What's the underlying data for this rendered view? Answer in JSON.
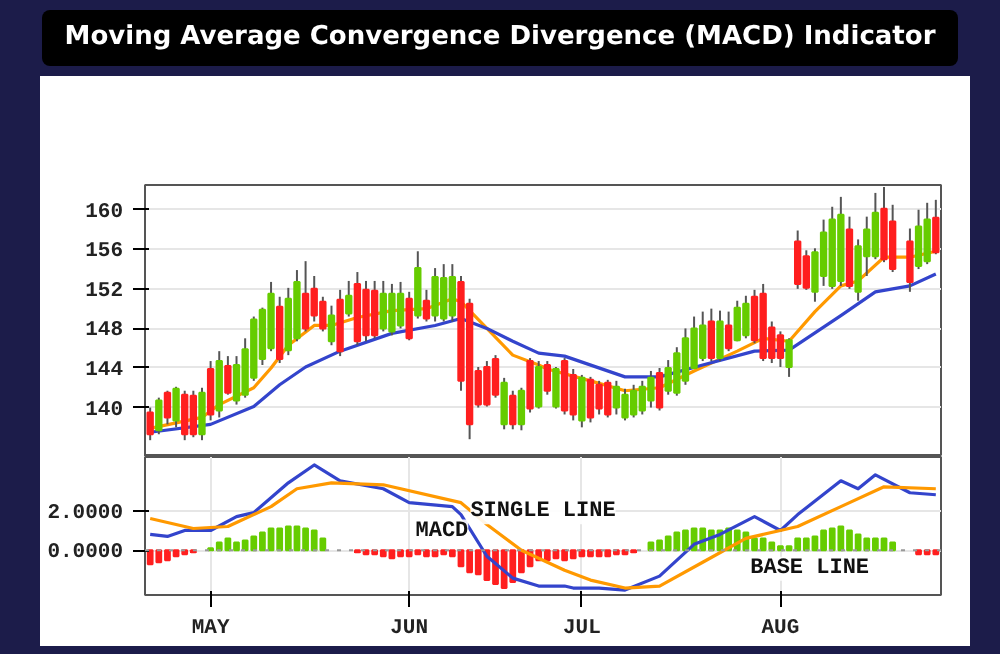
{
  "chart_data": [
    {
      "type": "candlestick",
      "title": "Moving Average Convergence Divergence (MACD) Indicator",
      "categories": [
        null,
        null,
        null,
        null,
        null,
        null,
        null,
        null,
        null,
        null,
        null,
        null,
        null,
        null,
        null,
        null,
        null,
        null,
        null,
        null,
        null,
        null,
        null,
        null,
        null,
        null,
        null,
        null,
        null,
        null,
        null,
        null,
        null,
        null,
        null,
        null,
        null,
        null,
        null,
        null,
        null,
        null,
        null,
        null,
        null,
        null,
        null,
        null,
        null,
        null,
        null,
        null,
        null,
        null,
        null,
        null,
        null,
        null,
        null,
        null,
        null,
        null,
        null,
        null,
        null,
        null,
        null,
        null,
        null,
        null,
        null,
        null,
        null,
        null,
        null,
        null,
        null,
        null,
        null,
        null,
        null,
        null,
        null,
        null,
        null,
        null,
        null,
        null,
        null,
        null,
        null,
        null
      ],
      "ohlc": [
        [
          139.5,
          140.0,
          136.7,
          137.3
        ],
        [
          137.7,
          141.0,
          137.3,
          140.7
        ],
        [
          141.5,
          141.7,
          138.3,
          139.0
        ],
        [
          138.7,
          142.1,
          138.0,
          141.9
        ],
        [
          141.3,
          141.7,
          136.7,
          137.3
        ],
        [
          141.2,
          141.7,
          137.0,
          137.3
        ],
        [
          137.3,
          142.0,
          136.7,
          141.5
        ],
        [
          143.9,
          144.7,
          138.7,
          139.3
        ],
        [
          139.7,
          145.7,
          139.0,
          144.7
        ],
        [
          144.2,
          145.2,
          141.3,
          141.5
        ],
        [
          140.7,
          145.2,
          140.3,
          144.3
        ],
        [
          141.3,
          147.0,
          141.0,
          145.9
        ],
        [
          143.0,
          149.2,
          142.7,
          148.9
        ],
        [
          144.9,
          150.1,
          144.3,
          149.9
        ],
        [
          146.0,
          152.7,
          145.7,
          151.5
        ],
        [
          150.2,
          151.2,
          144.5,
          144.9
        ],
        [
          145.8,
          152.1,
          145.3,
          151.0
        ],
        [
          147.0,
          153.9,
          146.7,
          152.7
        ],
        [
          151.5,
          154.8,
          147.7,
          148.0
        ],
        [
          152.0,
          153.3,
          148.7,
          149.3
        ],
        [
          150.7,
          151.2,
          147.7,
          148.0
        ],
        [
          146.7,
          150.3,
          146.3,
          149.3
        ],
        [
          150.9,
          151.9,
          145.2,
          145.7
        ],
        [
          149.5,
          152.8,
          149.2,
          151.3
        ],
        [
          152.5,
          153.7,
          146.3,
          146.7
        ],
        [
          151.9,
          152.8,
          146.7,
          147.3
        ],
        [
          151.8,
          152.8,
          147.0,
          147.3
        ],
        [
          148.0,
          152.8,
          147.7,
          151.5
        ],
        [
          147.7,
          152.5,
          147.3,
          151.5
        ],
        [
          148.3,
          152.7,
          148.0,
          151.5
        ],
        [
          151.0,
          151.7,
          146.8,
          147.0
        ],
        [
          149.3,
          155.8,
          149.0,
          154.1
        ],
        [
          150.8,
          151.9,
          148.7,
          149.0
        ],
        [
          149.3,
          154.1,
          148.7,
          153.2
        ],
        [
          149.0,
          154.5,
          148.7,
          153.1
        ],
        [
          149.3,
          154.5,
          148.7,
          153.2
        ],
        [
          152.7,
          153.3,
          141.7,
          142.7
        ],
        [
          150.5,
          151.0,
          136.8,
          138.3
        ],
        [
          143.7,
          144.1,
          140.0,
          140.3
        ],
        [
          144.1,
          144.7,
          140.1,
          140.3
        ],
        [
          144.9,
          145.3,
          141.0,
          141.3
        ],
        [
          138.3,
          143.0,
          137.8,
          142.5
        ],
        [
          141.2,
          141.7,
          137.8,
          138.3
        ],
        [
          138.3,
          142.0,
          137.7,
          141.7
        ],
        [
          144.7,
          145.0,
          139.5,
          139.9
        ],
        [
          140.1,
          144.7,
          139.9,
          144.1
        ],
        [
          144.3,
          144.7,
          141.3,
          141.7
        ],
        [
          140.1,
          144.1,
          139.9,
          143.9
        ],
        [
          144.7,
          145.0,
          139.3,
          139.7
        ],
        [
          143.3,
          143.9,
          138.7,
          139.3
        ],
        [
          138.7,
          143.3,
          138.0,
          143.0
        ],
        [
          142.8,
          143.1,
          138.5,
          139.0
        ],
        [
          142.3,
          142.7,
          139.3,
          139.9
        ],
        [
          142.5,
          142.8,
          139.0,
          139.3
        ],
        [
          140.0,
          142.7,
          139.3,
          142.1
        ],
        [
          139.0,
          141.9,
          138.7,
          141.3
        ],
        [
          139.3,
          142.3,
          139.0,
          141.7
        ],
        [
          139.7,
          142.7,
          139.3,
          142.1
        ],
        [
          140.7,
          143.7,
          140.0,
          143.0
        ],
        [
          143.5,
          144.0,
          139.7,
          140.0
        ],
        [
          141.7,
          144.8,
          141.3,
          144.0
        ],
        [
          141.5,
          146.1,
          141.2,
          145.5
        ],
        [
          142.7,
          148.0,
          142.3,
          147.0
        ],
        [
          144.0,
          149.2,
          143.9,
          148.0
        ],
        [
          145.0,
          149.7,
          144.7,
          148.3
        ],
        [
          148.7,
          150.0,
          144.7,
          145.0
        ],
        [
          145.0,
          149.8,
          144.7,
          148.7
        ],
        [
          148.3,
          149.7,
          145.7,
          146.0
        ],
        [
          146.8,
          150.8,
          146.7,
          150.1
        ],
        [
          147.3,
          151.3,
          147.0,
          150.5
        ],
        [
          151.2,
          151.9,
          146.5,
          146.8
        ],
        [
          151.5,
          152.5,
          144.7,
          145.0
        ],
        [
          148.1,
          148.7,
          144.5,
          145.0
        ],
        [
          147.3,
          147.7,
          144.1,
          145.0
        ],
        [
          144.1,
          147.0,
          143.1,
          146.8
        ],
        [
          156.8,
          157.9,
          152.0,
          152.5
        ],
        [
          155.3,
          155.9,
          151.9,
          152.1
        ],
        [
          151.7,
          156.1,
          150.7,
          155.7
        ],
        [
          153.3,
          159.0,
          152.3,
          157.7
        ],
        [
          152.3,
          160.3,
          152.0,
          159.0
        ],
        [
          152.8,
          161.3,
          152.3,
          159.5
        ],
        [
          158.0,
          159.3,
          152.0,
          152.3
        ],
        [
          151.7,
          157.0,
          150.8,
          156.3
        ],
        [
          155.3,
          159.3,
          153.3,
          158.0
        ],
        [
          155.3,
          161.7,
          155.0,
          159.7
        ],
        [
          160.1,
          162.3,
          154.7,
          155.0
        ],
        [
          158.8,
          160.5,
          153.7,
          154.0
        ],
        null,
        [
          156.8,
          158.1,
          151.7,
          152.7
        ],
        [
          154.3,
          160.0,
          154.0,
          158.3
        ],
        [
          154.8,
          160.7,
          154.5,
          159.0
        ],
        [
          159.2,
          161.0,
          155.5,
          155.7
        ]
      ],
      "colors": [
        "#ff1f1f",
        "#66cc00",
        "#ff1f1f",
        "#66cc00",
        "#ff1f1f",
        "#ff1f1f",
        "#66cc00",
        "#ff1f1f",
        "#66cc00",
        "#ff1f1f",
        "#66cc00",
        "#66cc00",
        "#66cc00",
        "#66cc00",
        "#66cc00",
        "#ff1f1f",
        "#66cc00",
        "#66cc00",
        "#ff1f1f",
        "#ff1f1f",
        "#ff1f1f",
        "#66cc00",
        "#ff1f1f",
        "#66cc00",
        "#ff1f1f",
        "#ff1f1f",
        "#ff1f1f",
        "#66cc00",
        "#66cc00",
        "#66cc00",
        "#ff1f1f",
        "#66cc00",
        "#ff1f1f",
        "#66cc00",
        "#66cc00",
        "#66cc00",
        "#ff1f1f",
        "#ff1f1f",
        "#ff1f1f",
        "#ff1f1f",
        "#ff1f1f",
        "#66cc00",
        "#ff1f1f",
        "#66cc00",
        "#ff1f1f",
        "#66cc00",
        "#ff1f1f",
        "#66cc00",
        "#ff1f1f",
        "#ff1f1f",
        "#66cc00",
        "#ff1f1f",
        "#ff1f1f",
        "#ff1f1f",
        "#66cc00",
        "#66cc00",
        "#66cc00",
        "#66cc00",
        "#66cc00",
        "#ff1f1f",
        "#66cc00",
        "#66cc00",
        "#66cc00",
        "#66cc00",
        "#66cc00",
        "#ff1f1f",
        "#66cc00",
        "#ff1f1f",
        "#66cc00",
        "#66cc00",
        "#ff1f1f",
        "#ff1f1f",
        "#ff1f1f",
        "#ff1f1f",
        "#66cc00",
        "#ff1f1f",
        "#ff1f1f",
        "#66cc00",
        "#66cc00",
        "#66cc00",
        "#66cc00",
        "#ff1f1f",
        "#66cc00",
        "#66cc00",
        "#66cc00",
        "#ff1f1f",
        "#ff1f1f",
        null,
        "#ff1f1f",
        "#66cc00",
        "#66cc00",
        "#ff1f1f"
      ],
      "series": [
        {
          "type": "line",
          "color": "#ff9900",
          "values": [
            137.9,
            null,
            null,
            null,
            null,
            null,
            139.0,
            null,
            140.3,
            null,
            null,
            null,
            142.0,
            null,
            144.0,
            null,
            146.3,
            null,
            null,
            148.3,
            null,
            148.3,
            null,
            null,
            149.1,
            null,
            null,
            null,
            149.8,
            null,
            null,
            null,
            150.0,
            null,
            null,
            151.0,
            150.7,
            null,
            null,
            148.0,
            null,
            null,
            145.3,
            null,
            null,
            144.3,
            143.9,
            null,
            null,
            null,
            null,
            142.7,
            null,
            null,
            null,
            141.7,
            null,
            null,
            null,
            142.0,
            null,
            null,
            null,
            143.7,
            null,
            null,
            null,
            null,
            145.7,
            null,
            null,
            147.0,
            null,
            null,
            146.7,
            null,
            null,
            149.7,
            null,
            null,
            152.3,
            null,
            152.8,
            null,
            null,
            155.2,
            null,
            null,
            155.2,
            null,
            null,
            155.8
          ]
        },
        {
          "type": "line",
          "color": "#3344cc",
          "values": [
            137.5,
            null,
            null,
            null,
            null,
            null,
            null,
            138.3,
            null,
            null,
            null,
            null,
            140.1,
            null,
            null,
            142.3,
            null,
            null,
            144.1,
            null,
            null,
            null,
            145.7,
            null,
            null,
            null,
            null,
            null,
            147.5,
            null,
            null,
            null,
            null,
            148.3,
            null,
            null,
            149.0,
            null,
            null,
            148.0,
            null,
            null,
            146.7,
            null,
            null,
            145.5,
            null,
            null,
            145.2,
            null,
            null,
            null,
            null,
            null,
            null,
            143.1,
            null,
            null,
            null,
            143.1,
            null,
            null,
            null,
            null,
            144.3,
            null,
            null,
            null,
            null,
            null,
            145.7,
            null,
            null,
            null,
            145.8,
            null,
            null,
            null,
            null,
            null,
            149.3,
            null,
            null,
            null,
            151.7,
            null,
            null,
            null,
            152.3,
            null,
            null,
            153.5
          ]
        }
      ],
      "ylim": [
        135,
        162.5
      ],
      "yticks": [
        140,
        144,
        148,
        152,
        156,
        160
      ],
      "grid": "y",
      "tick_labels": "y"
    },
    {
      "type": "bar",
      "categories": [
        null,
        null,
        null,
        null,
        null,
        null,
        null,
        "MAY",
        null,
        null,
        null,
        null,
        null,
        null,
        null,
        null,
        null,
        null,
        null,
        null,
        null,
        null,
        null,
        null,
        null,
        null,
        null,
        null,
        null,
        null,
        "JUN",
        null,
        null,
        null,
        null,
        null,
        null,
        null,
        null,
        null,
        null,
        null,
        null,
        null,
        null,
        null,
        null,
        null,
        null,
        null,
        "JUL",
        null,
        null,
        null,
        null,
        null,
        null,
        null,
        null,
        null,
        null,
        null,
        null,
        null,
        null,
        null,
        null,
        null,
        null,
        null,
        null,
        null,
        null,
        "AUG",
        null,
        null,
        null,
        null,
        null,
        null,
        null,
        null,
        null,
        null,
        null,
        null,
        null,
        null,
        null,
        null,
        null,
        null
      ],
      "values": [
        -0.7,
        -0.6,
        -0.5,
        -0.3,
        -0.2,
        -0.1,
        null,
        0.1,
        0.4,
        0.6,
        0.4,
        0.5,
        0.7,
        0.9,
        1.1,
        1.1,
        1.2,
        1.2,
        1.1,
        1.0,
        0.6,
        null,
        null,
        null,
        -0.1,
        -0.2,
        -0.2,
        -0.3,
        -0.4,
        -0.3,
        -0.3,
        -0.2,
        -0.3,
        -0.3,
        -0.2,
        -0.3,
        -0.8,
        -1.1,
        -1.2,
        -1.5,
        -1.7,
        -1.9,
        -1.6,
        -1.1,
        -0.8,
        -0.5,
        -0.5,
        -0.4,
        -0.5,
        -0.4,
        -0.3,
        -0.3,
        -0.3,
        -0.3,
        -0.2,
        -0.2,
        -0.1,
        null,
        0.4,
        0.5,
        0.7,
        0.9,
        1.0,
        1.1,
        1.1,
        1.0,
        1.0,
        1.1,
        1.0,
        0.9,
        0.6,
        0.6,
        0.4,
        0.2,
        0.2,
        0.6,
        0.6,
        0.7,
        1.0,
        1.1,
        1.2,
        1.0,
        0.8,
        0.6,
        0.6,
        0.6,
        0.4,
        null,
        null,
        -0.2,
        -0.2,
        -0.2
      ],
      "colors": [
        "#ff1f1f",
        "#ff1f1f",
        "#ff1f1f",
        "#ff1f1f",
        "#ff1f1f",
        "#ff1f1f",
        "#ff1f1f",
        "#66cc00",
        "#66cc00",
        "#66cc00",
        "#66cc00",
        "#66cc00",
        "#66cc00",
        "#66cc00",
        "#66cc00",
        "#66cc00",
        "#66cc00",
        "#66cc00",
        "#66cc00",
        "#66cc00",
        "#66cc00",
        "#66cc00",
        "#66cc00",
        "#66cc00",
        "#ff1f1f",
        "#ff1f1f",
        "#ff1f1f",
        "#ff1f1f",
        "#ff1f1f",
        "#ff1f1f",
        "#ff1f1f",
        "#ff1f1f",
        "#ff1f1f",
        "#ff1f1f",
        "#ff1f1f",
        "#ff1f1f",
        "#ff1f1f",
        "#ff1f1f",
        "#ff1f1f",
        "#ff1f1f",
        "#ff1f1f",
        "#ff1f1f",
        "#ff1f1f",
        "#ff1f1f",
        "#ff1f1f",
        "#ff1f1f",
        "#ff1f1f",
        "#ff1f1f",
        "#ff1f1f",
        "#ff1f1f",
        "#ff1f1f",
        "#ff1f1f",
        "#ff1f1f",
        "#ff1f1f",
        "#ff1f1f",
        "#ff1f1f",
        "#ff1f1f",
        "#ff1f1f",
        "#66cc00",
        "#66cc00",
        "#66cc00",
        "#66cc00",
        "#66cc00",
        "#66cc00",
        "#66cc00",
        "#66cc00",
        "#66cc00",
        "#66cc00",
        "#66cc00",
        "#66cc00",
        "#66cc00",
        "#66cc00",
        "#66cc00",
        "#66cc00",
        "#66cc00",
        "#66cc00",
        "#66cc00",
        "#66cc00",
        "#66cc00",
        "#66cc00",
        "#66cc00",
        "#66cc00",
        "#66cc00",
        "#66cc00",
        "#66cc00",
        "#66cc00",
        "#66cc00",
        "#66cc00",
        "#66cc00",
        "#ff1f1f",
        "#ff1f1f",
        "#ff1f1f"
      ],
      "series": [
        {
          "type": "line",
          "color": "#3344cc",
          "values": [
            0.8,
            null,
            0.7,
            null,
            1.0,
            null,
            null,
            1.0,
            null,
            null,
            1.7,
            null,
            1.9,
            null,
            null,
            null,
            3.4,
            null,
            null,
            4.3,
            null,
            null,
            3.5,
            null,
            null,
            null,
            null,
            3.1,
            null,
            null,
            2.4,
            null,
            null,
            null,
            null,
            2.2,
            1.8,
            null,
            null,
            -0.3,
            null,
            null,
            -1.4,
            null,
            null,
            -1.8,
            null,
            null,
            -1.8,
            -1.9,
            null,
            null,
            -1.9,
            null,
            null,
            -2.0,
            null,
            null,
            null,
            -1.3,
            null,
            null,
            null,
            0.3,
            null,
            null,
            0.8,
            null,
            null,
            null,
            1.7,
            null,
            null,
            1.0,
            null,
            1.8,
            null,
            null,
            null,
            null,
            3.5,
            null,
            3.1,
            null,
            3.8,
            null,
            null,
            null,
            2.9,
            null,
            null,
            2.8
          ]
        },
        {
          "type": "line",
          "color": "#ff9900",
          "values": [
            1.6,
            null,
            null,
            null,
            null,
            1.1,
            null,
            null,
            null,
            1.2,
            null,
            null,
            null,
            null,
            2.2,
            null,
            null,
            3.1,
            null,
            null,
            null,
            3.4,
            null,
            null,
            null,
            null,
            null,
            3.3,
            null,
            null,
            null,
            null,
            null,
            null,
            null,
            null,
            2.4,
            null,
            null,
            1.3,
            null,
            null,
            null,
            0.0,
            null,
            null,
            null,
            null,
            -1.0,
            null,
            null,
            -1.5,
            null,
            null,
            null,
            -1.9,
            null,
            null,
            null,
            -1.8,
            null,
            null,
            null,
            null,
            -0.6,
            null,
            null,
            null,
            null,
            0.6,
            null,
            null,
            null,
            null,
            null,
            1.2,
            null,
            null,
            null,
            null,
            2.2,
            null,
            null,
            null,
            null,
            3.2,
            null,
            null,
            null,
            null,
            null,
            3.1
          ]
        }
      ],
      "ylim": [
        -2.25,
        4.7
      ],
      "yticks": [
        {
          "value": 0,
          "label": "0.0000"
        },
        {
          "value": 2,
          "label": "2.0000"
        }
      ],
      "grid": true,
      "ref_lines": [
        {
          "axis": "y",
          "value": 0,
          "color": "#999999",
          "line_style": "dotted"
        }
      ],
      "annotations": [
        "MACD",
        "SINGLE LINE",
        "BASE LINE"
      ]
    }
  ]
}
